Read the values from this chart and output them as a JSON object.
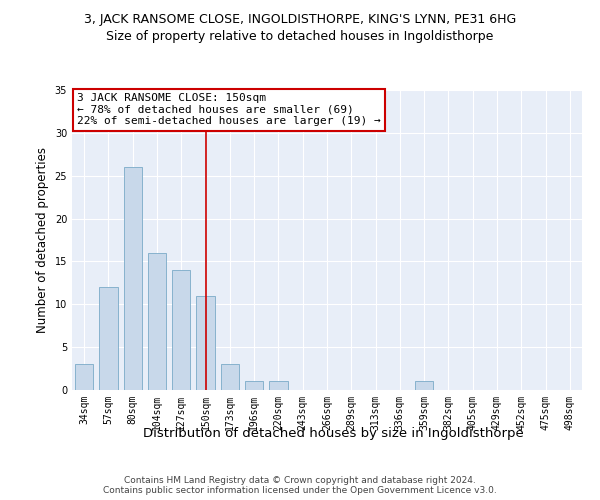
{
  "title": "3, JACK RANSOME CLOSE, INGOLDISTHORPE, KING'S LYNN, PE31 6HG",
  "subtitle": "Size of property relative to detached houses in Ingoldisthorpe",
  "xlabel": "Distribution of detached houses by size in Ingoldisthorpe",
  "ylabel": "Number of detached properties",
  "categories": [
    "34sqm",
    "57sqm",
    "80sqm",
    "104sqm",
    "127sqm",
    "150sqm",
    "173sqm",
    "196sqm",
    "220sqm",
    "243sqm",
    "266sqm",
    "289sqm",
    "313sqm",
    "336sqm",
    "359sqm",
    "382sqm",
    "405sqm",
    "429sqm",
    "452sqm",
    "475sqm",
    "498sqm"
  ],
  "values": [
    3,
    12,
    26,
    16,
    14,
    11,
    3,
    1,
    1,
    0,
    0,
    0,
    0,
    0,
    1,
    0,
    0,
    0,
    0,
    0,
    0
  ],
  "bar_color": "#c8d8ea",
  "bar_edge_color": "#7aaac8",
  "highlight_line_index": 5,
  "highlight_line_color": "#cc0000",
  "annotation_text": "3 JACK RANSOME CLOSE: 150sqm\n← 78% of detached houses are smaller (69)\n22% of semi-detached houses are larger (19) →",
  "annotation_box_color": "#ffffff",
  "annotation_box_edge_color": "#cc0000",
  "ylim": [
    0,
    35
  ],
  "yticks": [
    0,
    5,
    10,
    15,
    20,
    25,
    30,
    35
  ],
  "background_color": "#ffffff",
  "plot_background_color": "#e8eef8",
  "footer": "Contains HM Land Registry data © Crown copyright and database right 2024.\nContains public sector information licensed under the Open Government Licence v3.0.",
  "title_fontsize": 9,
  "subtitle_fontsize": 9,
  "xlabel_fontsize": 9.5,
  "ylabel_fontsize": 8.5,
  "tick_fontsize": 7,
  "annotation_fontsize": 8,
  "footer_fontsize": 6.5
}
